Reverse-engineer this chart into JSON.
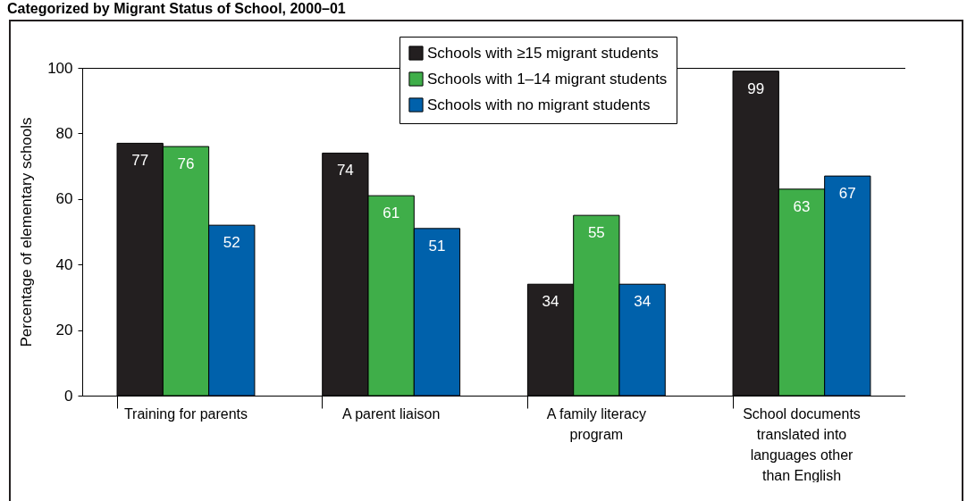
{
  "chart_data": {
    "type": "bar",
    "title": "Categorized by Migrant Status of School, 2000–01",
    "ylabel": "Percentage of elementary schools",
    "categories": [
      "Training for parents",
      "A parent liaison",
      "A family literacy program",
      "School documents translated into languages other than English"
    ],
    "series": [
      {
        "name": "Schools with ≥15 migrant students",
        "color": "#231f20",
        "values": [
          77,
          74,
          34,
          99
        ]
      },
      {
        "name": "Schools with 1–14 migrant students",
        "color": "#3fae49",
        "values": [
          76,
          61,
          55,
          63
        ]
      },
      {
        "name": "Schools with no migrant students",
        "color": "#0061ab",
        "values": [
          52,
          51,
          34,
          67
        ]
      }
    ],
    "ylim": [
      0,
      100
    ],
    "yticks": [
      0,
      20,
      40,
      60,
      80,
      100
    ],
    "grid": false,
    "legend": "top",
    "data_labels": true
  }
}
